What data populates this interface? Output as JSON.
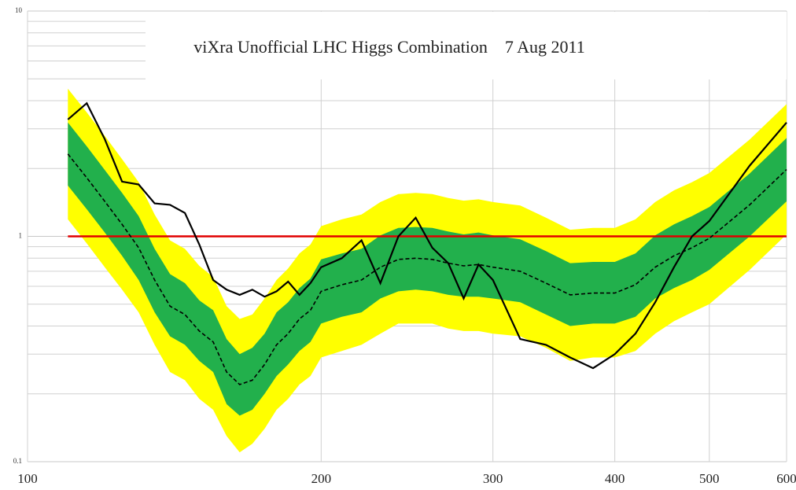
{
  "chart_data": {
    "type": "line",
    "title": "viXra Unofficial LHC Higgs Combination    7 Aug 2011",
    "x_log": true,
    "y_log": true,
    "xlim": [
      100,
      600
    ],
    "xticks": [
      100,
      200,
      300,
      400,
      500,
      600
    ],
    "ylim": [
      0.1,
      10
    ],
    "yticks": [
      0.1,
      1,
      10
    ],
    "y_minor_ticks": [
      0.2,
      0.3,
      0.4,
      0.5,
      0.6,
      0.7,
      0.8,
      0.9,
      2,
      3,
      4,
      5,
      6,
      7,
      8,
      9
    ],
    "grid": true,
    "x": [
      110,
      115,
      120,
      125,
      130,
      135,
      140,
      145,
      150,
      155,
      160,
      165,
      170,
      175,
      180,
      185,
      190,
      195,
      200,
      210,
      220,
      230,
      240,
      250,
      260,
      270,
      280,
      290,
      300,
      320,
      340,
      360,
      380,
      400,
      420,
      440,
      460,
      480,
      500,
      550,
      600
    ],
    "bands": [
      {
        "color": "#ffff00",
        "upper": [
          4.52,
          3.55,
          2.79,
          2.2,
          1.74,
          1.25,
          0.96,
          0.88,
          0.74,
          0.66,
          0.49,
          0.43,
          0.45,
          0.53,
          0.64,
          0.72,
          0.84,
          0.92,
          1.11,
          1.19,
          1.25,
          1.42,
          1.54,
          1.56,
          1.54,
          1.48,
          1.44,
          1.46,
          1.42,
          1.37,
          1.21,
          1.07,
          1.09,
          1.09,
          1.19,
          1.42,
          1.6,
          1.74,
          1.91,
          2.69,
          3.86
        ],
        "lower": [
          1.19,
          0.93,
          0.73,
          0.58,
          0.46,
          0.33,
          0.25,
          0.23,
          0.19,
          0.17,
          0.13,
          0.11,
          0.12,
          0.14,
          0.17,
          0.19,
          0.22,
          0.24,
          0.29,
          0.31,
          0.33,
          0.37,
          0.41,
          0.41,
          0.41,
          0.39,
          0.38,
          0.38,
          0.37,
          0.36,
          0.32,
          0.28,
          0.29,
          0.29,
          0.31,
          0.37,
          0.42,
          0.46,
          0.5,
          0.71,
          1.02
        ]
      },
      {
        "color": "#22b04c",
        "upper": [
          3.2,
          2.51,
          1.97,
          1.56,
          1.23,
          0.88,
          0.68,
          0.62,
          0.52,
          0.47,
          0.35,
          0.3,
          0.32,
          0.37,
          0.46,
          0.51,
          0.59,
          0.65,
          0.79,
          0.84,
          0.88,
          1.01,
          1.09,
          1.1,
          1.09,
          1.05,
          1.02,
          1.04,
          1.01,
          0.97,
          0.86,
          0.76,
          0.77,
          0.77,
          0.84,
          1.01,
          1.13,
          1.23,
          1.35,
          1.9,
          2.73
        ],
        "lower": [
          1.68,
          1.32,
          1.04,
          0.82,
          0.64,
          0.46,
          0.36,
          0.33,
          0.28,
          0.25,
          0.18,
          0.16,
          0.17,
          0.2,
          0.24,
          0.27,
          0.31,
          0.34,
          0.41,
          0.44,
          0.46,
          0.53,
          0.57,
          0.58,
          0.57,
          0.55,
          0.54,
          0.54,
          0.53,
          0.51,
          0.45,
          0.4,
          0.41,
          0.41,
          0.44,
          0.53,
          0.59,
          0.64,
          0.71,
          1.0,
          1.43
        ]
      }
    ],
    "series": [
      {
        "color": "#000000",
        "dashed": true,
        "values": [
          2.32,
          1.82,
          1.43,
          1.13,
          0.89,
          0.64,
          0.49,
          0.45,
          0.38,
          0.34,
          0.25,
          0.22,
          0.23,
          0.27,
          0.33,
          0.37,
          0.43,
          0.47,
          0.57,
          0.61,
          0.64,
          0.73,
          0.79,
          0.8,
          0.79,
          0.76,
          0.74,
          0.75,
          0.73,
          0.7,
          0.62,
          0.55,
          0.56,
          0.56,
          0.61,
          0.73,
          0.82,
          0.89,
          0.98,
          1.38,
          1.98
        ]
      },
      {
        "color": "#000000",
        "dashed": false,
        "values": [
          3.3,
          3.9,
          2.7,
          1.75,
          1.7,
          1.4,
          1.38,
          1.27,
          0.92,
          0.64,
          0.58,
          0.55,
          0.58,
          0.54,
          0.57,
          0.63,
          0.55,
          0.62,
          0.73,
          0.8,
          0.96,
          0.62,
          1.0,
          1.21,
          0.89,
          0.76,
          0.53,
          0.75,
          0.64,
          0.35,
          0.33,
          0.29,
          0.26,
          0.3,
          0.37,
          0.51,
          0.73,
          1.0,
          1.17,
          2.06,
          3.2
        ]
      }
    ],
    "reference_line": {
      "value": 1,
      "color": "#e00000"
    }
  }
}
